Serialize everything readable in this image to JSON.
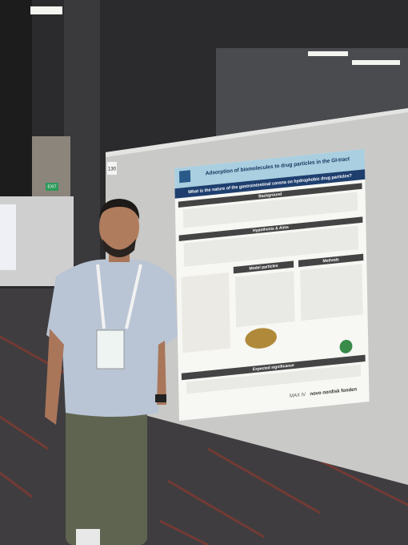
{
  "sign": {
    "exit": "EXIT"
  },
  "board": {
    "number": "130"
  },
  "poster": {
    "title": "Adsorption of biomolecules to drug particles in the GI-tract",
    "question": "What is the nature of the gastrointestinal corona on hydrophobic drug particles?",
    "sections": [
      "Background",
      "Hypothesis & Aims",
      "Model particles",
      "Methods",
      "Expected significance"
    ],
    "sponsors": [
      "MAX IV",
      "novo nordisk fonden"
    ]
  }
}
